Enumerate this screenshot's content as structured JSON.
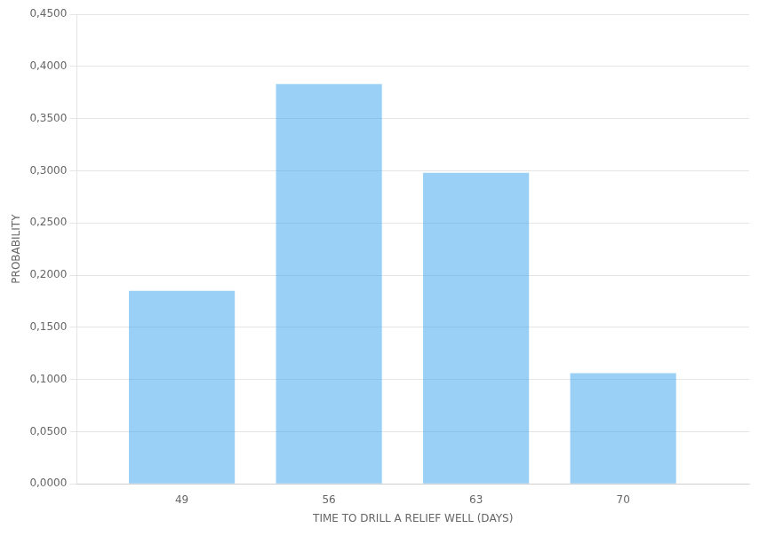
{
  "chart_data": {
    "type": "bar",
    "x": [
      49,
      56,
      63,
      70
    ],
    "values": [
      0.185,
      0.383,
      0.298,
      0.106
    ],
    "xlabel": "TIME TO DRILL A RELIEF WELL (DAYS)",
    "ylabel": "PROBABILITY",
    "xlim": [
      44,
      76
    ],
    "xticks": [
      49,
      56,
      63,
      70
    ],
    "ylim": [
      0.0,
      0.45
    ],
    "yticks": [
      {
        "value": 0.0,
        "label": "0,0000"
      },
      {
        "value": 0.05,
        "label": "0,0500"
      },
      {
        "value": 0.1,
        "label": "0,1000"
      },
      {
        "value": 0.15,
        "label": "0,1500"
      },
      {
        "value": 0.2,
        "label": "0,2000"
      },
      {
        "value": 0.25,
        "label": "0,2500"
      },
      {
        "value": 0.3,
        "label": "0,3000"
      },
      {
        "value": 0.35,
        "label": "0,3500"
      },
      {
        "value": 0.4,
        "label": "0,4000"
      },
      {
        "value": 0.45,
        "label": "0,4500"
      }
    ],
    "grid": true
  }
}
